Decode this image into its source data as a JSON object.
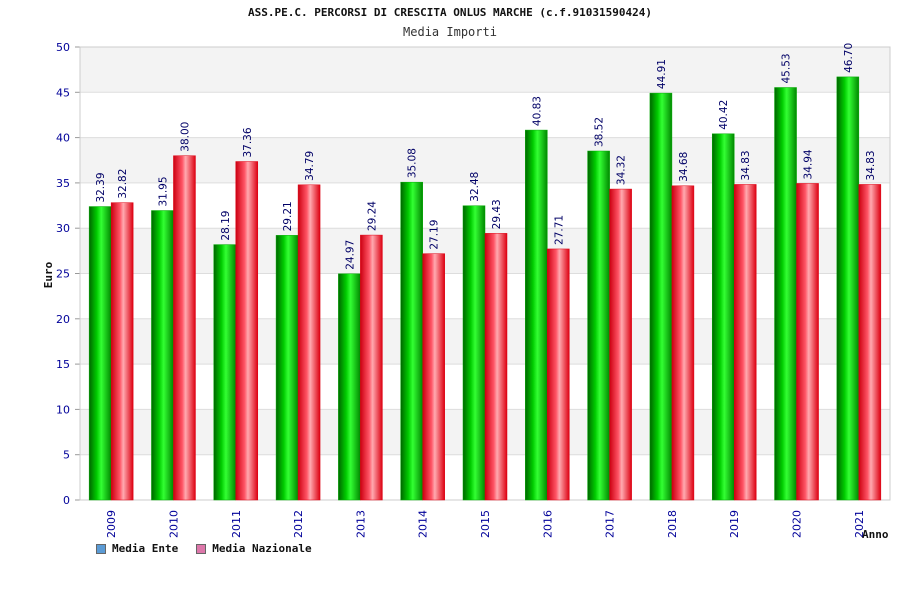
{
  "chart_data": {
    "type": "bar",
    "title": "ASS.PE.C. PERCORSI DI CRESCITA ONLUS MARCHE (c.f.91031590424)",
    "subtitle": "Media Importi",
    "xlabel": "Anno",
    "ylabel": "Euro",
    "ylim": [
      0,
      50
    ],
    "yticks": [
      0,
      5,
      10,
      15,
      20,
      25,
      30,
      35,
      40,
      45,
      50
    ],
    "categories": [
      "2009",
      "2010",
      "2011",
      "2012",
      "2013",
      "2014",
      "2015",
      "2016",
      "2017",
      "2018",
      "2019",
      "2020",
      "2021"
    ],
    "series": [
      {
        "name": "Media Ente",
        "color": "#00bb00",
        "legend_color": "#5b9bd5",
        "values": [
          32.39,
          31.95,
          28.19,
          29.21,
          24.97,
          35.08,
          32.48,
          40.83,
          38.52,
          44.91,
          40.42,
          45.53,
          46.7
        ],
        "labels": [
          "32.39",
          "31.95",
          "28.19",
          "29.21",
          "24.97",
          "35.08",
          "32.48",
          "40.83",
          "38.52",
          "44.91",
          "40.42",
          "45.53",
          "46.70"
        ]
      },
      {
        "name": "Media Nazionale",
        "color": "#ee1c2e",
        "legend_color": "#dd77aa",
        "values": [
          32.82,
          38.0,
          37.36,
          34.79,
          29.24,
          27.19,
          29.43,
          27.71,
          34.32,
          34.68,
          34.83,
          34.94,
          34.83
        ],
        "labels": [
          "32.82",
          "38.00",
          "37.36",
          "34.79",
          "29.24",
          "27.19",
          "29.43",
          "27.71",
          "34.32",
          "34.68",
          "34.83",
          "34.94",
          "34.83"
        ]
      }
    ]
  }
}
